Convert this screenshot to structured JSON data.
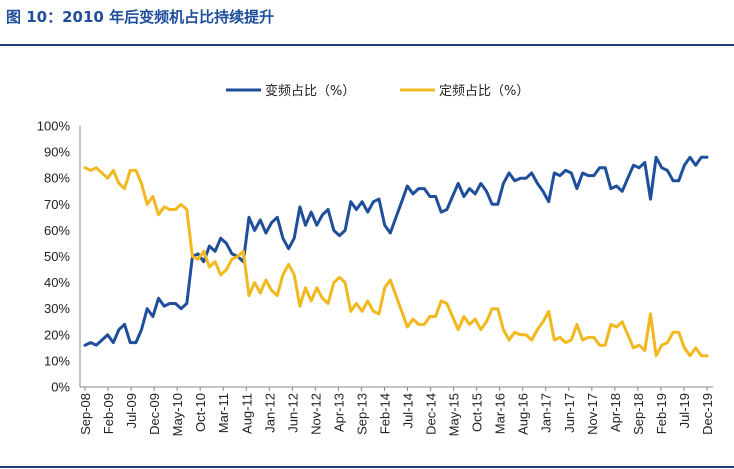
{
  "title": "图 10：2010 年后变频机占比持续提升",
  "chart_data": {
    "type": "line",
    "x_ticks": [
      "Sep-08",
      "Feb-09",
      "Jul-09",
      "Dec-09",
      "May-10",
      "Oct-10",
      "Mar-11",
      "Aug-11",
      "Jan-12",
      "Jun-12",
      "Nov-12",
      "Apr-13",
      "Sep-13",
      "Feb-14",
      "Jul-14",
      "Dec-14",
      "May-15",
      "Oct-15",
      "Mar-16",
      "Aug-16",
      "Jan-17",
      "Jun-17",
      "Nov-17",
      "Apr-18",
      "Sep-18",
      "Feb-19",
      "Jul-19",
      "Dec-19"
    ],
    "y_ticks": [
      "0%",
      "10%",
      "20%",
      "30%",
      "40%",
      "50%",
      "60%",
      "70%",
      "80%",
      "90%",
      "100%"
    ],
    "ylim": [
      0,
      100
    ],
    "legend_position": "top-center",
    "grid": false,
    "series": [
      {
        "name": "变频占比（%）",
        "color": "#1f4e9a",
        "values": [
          16,
          17,
          16,
          18,
          20,
          17,
          22,
          24,
          17,
          17,
          22,
          30,
          27,
          34,
          31,
          32,
          32,
          30,
          32,
          50,
          51,
          48,
          54,
          52,
          57,
          55,
          51,
          50,
          48,
          65,
          60,
          64,
          59,
          63,
          65,
          57,
          53,
          57,
          69,
          62,
          67,
          62,
          66,
          68,
          60,
          58,
          60,
          71,
          68,
          71,
          67,
          71,
          72,
          62,
          59,
          65,
          71,
          77,
          74,
          76,
          76,
          73,
          73,
          67,
          68,
          73,
          78,
          73,
          76,
          74,
          78,
          75,
          70,
          70,
          78,
          82,
          79,
          80,
          80,
          82,
          78,
          75,
          71,
          82,
          81,
          83,
          82,
          76,
          82,
          81,
          81,
          84,
          84,
          76,
          77,
          75,
          80,
          85,
          84,
          86,
          72,
          88,
          84,
          83,
          79,
          79,
          85,
          88,
          85,
          88,
          88
        ]
      },
      {
        "name": "定频占比（%）",
        "color": "#f2b81f",
        "values": [
          84,
          83,
          84,
          82,
          80,
          83,
          78,
          76,
          83,
          83,
          78,
          70,
          73,
          66,
          69,
          68,
          68,
          70,
          68,
          50,
          49,
          52,
          46,
          48,
          43,
          45,
          49,
          50,
          52,
          35,
          40,
          36,
          41,
          37,
          35,
          43,
          47,
          43,
          31,
          38,
          33,
          38,
          34,
          32,
          40,
          42,
          40,
          29,
          32,
          29,
          33,
          29,
          28,
          38,
          41,
          35,
          29,
          23,
          26,
          24,
          24,
          27,
          27,
          33,
          32,
          27,
          22,
          27,
          24,
          26,
          22,
          25,
          30,
          30,
          22,
          18,
          21,
          20,
          20,
          18,
          22,
          25,
          29,
          18,
          19,
          17,
          18,
          24,
          18,
          19,
          19,
          16,
          16,
          24,
          23,
          25,
          20,
          15,
          16,
          14,
          28,
          12,
          16,
          17,
          21,
          21,
          15,
          12,
          15,
          12,
          12
        ]
      }
    ]
  }
}
